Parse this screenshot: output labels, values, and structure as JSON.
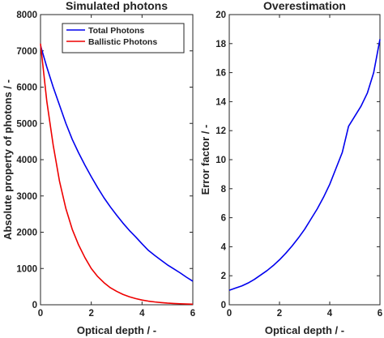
{
  "chart_data": [
    {
      "type": "line",
      "title": "Simulated photons",
      "xlabel": "Optical depth / -",
      "ylabel": "Absolute property of photons / -",
      "xlim": [
        0,
        6
      ],
      "ylim": [
        0,
        8000
      ],
      "xticks": [
        0,
        2,
        4,
        6
      ],
      "yticks": [
        0,
        1000,
        2000,
        3000,
        4000,
        5000,
        6000,
        7000,
        8000
      ],
      "grid": false,
      "legend_position": "top-right",
      "series": [
        {
          "name": "Total Photons",
          "color": "#0000ee",
          "x": [
            0,
            0.25,
            0.5,
            0.75,
            1,
            1.25,
            1.5,
            1.75,
            2,
            2.25,
            2.5,
            2.75,
            3,
            3.25,
            3.5,
            3.75,
            4,
            4.25,
            4.5,
            4.75,
            5,
            5.25,
            5.5,
            5.75,
            6
          ],
          "y": [
            7150,
            6550,
            6000,
            5500,
            5000,
            4560,
            4190,
            3850,
            3530,
            3230,
            2950,
            2700,
            2470,
            2250,
            2050,
            1870,
            1680,
            1500,
            1360,
            1230,
            1100,
            990,
            880,
            760,
            650
          ]
        },
        {
          "name": "Ballistic Photons",
          "color": "#ee0000",
          "x": [
            0,
            0.25,
            0.5,
            0.75,
            1,
            1.25,
            1.5,
            1.75,
            2,
            2.25,
            2.5,
            2.75,
            3,
            3.25,
            3.5,
            3.75,
            4,
            4.25,
            4.5,
            4.75,
            5,
            5.25,
            5.5,
            5.75,
            6
          ],
          "y": [
            7200,
            5600,
            4400,
            3400,
            2650,
            2080,
            1650,
            1300,
            1000,
            780,
            610,
            470,
            370,
            285,
            220,
            170,
            130,
            100,
            78,
            60,
            46,
            36,
            28,
            22,
            17
          ]
        }
      ]
    },
    {
      "type": "line",
      "title": "Overestimation",
      "xlabel": "Optical depth / -",
      "ylabel": "Error factor / -",
      "xlim": [
        0,
        6
      ],
      "ylim": [
        0,
        20
      ],
      "xticks": [
        0,
        2,
        4,
        6
      ],
      "yticks": [
        0,
        2,
        4,
        6,
        8,
        10,
        12,
        14,
        16,
        18,
        20
      ],
      "grid": false,
      "series": [
        {
          "color": "#0000ee",
          "x": [
            0,
            0.25,
            0.5,
            0.75,
            1,
            1.25,
            1.5,
            1.75,
            2,
            2.25,
            2.5,
            2.75,
            3,
            3.25,
            3.5,
            3.75,
            4,
            4.25,
            4.5,
            4.75,
            5,
            5.25,
            5.5,
            5.75,
            6
          ],
          "y": [
            1.0,
            1.15,
            1.3,
            1.5,
            1.75,
            2.05,
            2.35,
            2.7,
            3.1,
            3.55,
            4.05,
            4.6,
            5.2,
            5.9,
            6.6,
            7.4,
            8.3,
            9.4,
            10.5,
            12.3,
            13.0,
            13.7,
            14.6,
            16.0,
            18.3
          ]
        }
      ]
    }
  ]
}
